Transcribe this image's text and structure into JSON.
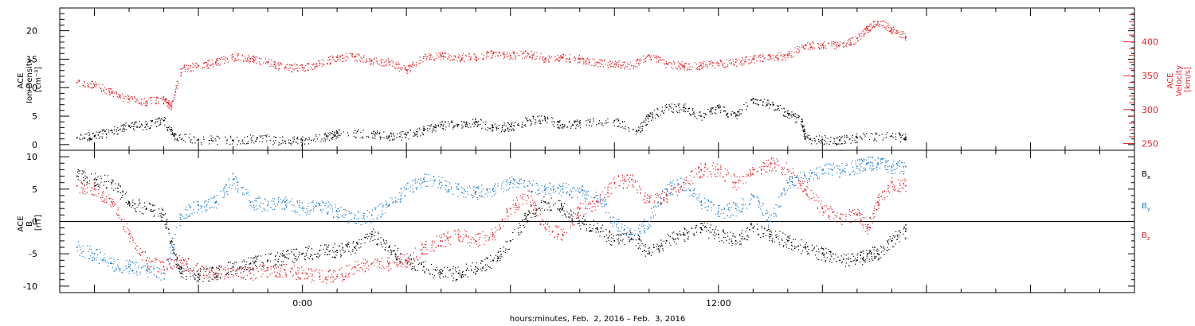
{
  "chart_data": [
    {
      "type": "scatter",
      "panel": "top",
      "ylabel_left": [
        "ACE",
        "Ion Density",
        "[cm⁻³]"
      ],
      "ylabel_right": [
        "ACE",
        "Velocity",
        "[km/s]"
      ],
      "ylim_left": [
        -1,
        24
      ],
      "ylim_right": [
        240,
        450
      ],
      "y_ticks_left": [
        0,
        5,
        10,
        15,
        20
      ],
      "y_ticks_right": [
        250,
        300,
        350,
        400
      ],
      "colors": {
        "density": "#000000",
        "velocity": "#e8232a"
      },
      "series": [
        {
          "name": "Ion Density",
          "axis": "left",
          "color": "#000000",
          "points": [
            [
              -6.5,
              1.2
            ],
            [
              -6,
              1.5
            ],
            [
              -5.5,
              2.5
            ],
            [
              -5,
              3.2
            ],
            [
              -4.5,
              3.5
            ],
            [
              -4,
              4.2
            ],
            [
              -3.7,
              1.5
            ],
            [
              -3,
              0.9
            ],
            [
              -2,
              0.8
            ],
            [
              -1.3,
              1.2
            ],
            [
              -0.5,
              0.6
            ],
            [
              0,
              0.7
            ],
            [
              0.7,
              1.5
            ],
            [
              1,
              2
            ],
            [
              2,
              2.0
            ],
            [
              2.5,
              1.5
            ],
            [
              3,
              1.7
            ],
            [
              3.5,
              2.5
            ],
            [
              4,
              3.5
            ],
            [
              4.5,
              3.5
            ],
            [
              5,
              4.0
            ],
            [
              5.5,
              3.0
            ],
            [
              6,
              3.2
            ],
            [
              6.5,
              4.2
            ],
            [
              7,
              4.5
            ],
            [
              7.5,
              3.5
            ],
            [
              8,
              3.8
            ],
            [
              9,
              4.2
            ],
            [
              9.7,
              2.5
            ],
            [
              10,
              5
            ],
            [
              10.5,
              6.5
            ],
            [
              11,
              6.5
            ],
            [
              11.5,
              5.0
            ],
            [
              12,
              6.5
            ],
            [
              12.5,
              5.0
            ],
            [
              13,
              8.0
            ],
            [
              13.5,
              7.0
            ],
            [
              14,
              5.5
            ],
            [
              14.4,
              4.0
            ],
            [
              14.5,
              1
            ],
            [
              15,
              0.9
            ],
            [
              15.5,
              0.8
            ],
            [
              16,
              1.2
            ],
            [
              17,
              1.5
            ],
            [
              17.4,
              1.3
            ]
          ]
        },
        {
          "name": "Velocity",
          "axis": "right",
          "color": "#e8232a",
          "points": [
            [
              -6.5,
              340
            ],
            [
              -6,
              337
            ],
            [
              -5.5,
              325
            ],
            [
              -5,
              315
            ],
            [
              -4.5,
              312
            ],
            [
              -4,
              315
            ],
            [
              -3.8,
              305
            ],
            [
              -3.5,
              360
            ],
            [
              -3,
              365
            ],
            [
              -2.5,
              370
            ],
            [
              -2,
              378
            ],
            [
              -1.5,
              375
            ],
            [
              -1,
              370
            ],
            [
              -0.5,
              362
            ],
            [
              0,
              362
            ],
            [
              0.5,
              368
            ],
            [
              1,
              377
            ],
            [
              1.5,
              378
            ],
            [
              2,
              372
            ],
            [
              2.5,
              370
            ],
            [
              3,
              358
            ],
            [
              3.5,
              378
            ],
            [
              4,
              380
            ],
            [
              4.5,
              377
            ],
            [
              5,
              378
            ],
            [
              5.5,
              383
            ],
            [
              6,
              380
            ],
            [
              6.5,
              383
            ],
            [
              7,
              375
            ],
            [
              7.5,
              377
            ],
            [
              8,
              375
            ],
            [
              8.5,
              370
            ],
            [
              9,
              367
            ],
            [
              9.5,
              365
            ],
            [
              10,
              380
            ],
            [
              10.5,
              368
            ],
            [
              11,
              365
            ],
            [
              11.5,
              365
            ],
            [
              12,
              368
            ],
            [
              12.5,
              370
            ],
            [
              13,
              375
            ],
            [
              13.5,
              378
            ],
            [
              14,
              380
            ],
            [
              14.5,
              395
            ],
            [
              15,
              395
            ],
            [
              15.5,
              395
            ],
            [
              16,
              405
            ],
            [
              16.3,
              420
            ],
            [
              16.6,
              430
            ],
            [
              17,
              418
            ],
            [
              17.4,
              408
            ]
          ]
        }
      ]
    },
    {
      "type": "scatter",
      "panel": "bottom",
      "ylabel": [
        "ACE",
        "B",
        "[nT]"
      ],
      "ylim": [
        -11,
        11
      ],
      "y_ticks": [
        -10,
        -5,
        0,
        5,
        10
      ],
      "zero_line": true,
      "colors": {
        "Bx": "#000000",
        "By": "#1f7fd3",
        "Bz": "#e8232a"
      },
      "legend": [
        {
          "base": "B",
          "sub": "x",
          "color": "#000000"
        },
        {
          "base": "B",
          "sub": "y",
          "color": "#1f7fd3"
        },
        {
          "base": "B",
          "sub": "z",
          "color": "#e8232a"
        }
      ],
      "series": [
        {
          "name": "Bx",
          "color": "#000000",
          "points": [
            [
              -6.5,
              7
            ],
            [
              -6,
              6.5
            ],
            [
              -5.5,
              6
            ],
            [
              -5,
              3
            ],
            [
              -4.5,
              2
            ],
            [
              -4,
              1
            ],
            [
              -3.7,
              -5
            ],
            [
              -3.5,
              -8
            ],
            [
              -3,
              -8.2
            ],
            [
              -2.5,
              -8
            ],
            [
              -2,
              -7
            ],
            [
              -1.5,
              -6.5
            ],
            [
              -1,
              -6
            ],
            [
              -0.5,
              -5.5
            ],
            [
              0,
              -5
            ],
            [
              0.5,
              -4.5
            ],
            [
              1,
              -4.5
            ],
            [
              1.5,
              -4
            ],
            [
              2,
              -2
            ],
            [
              2.5,
              -4
            ],
            [
              3,
              -6
            ],
            [
              3.5,
              -7
            ],
            [
              4,
              -8
            ],
            [
              4.5,
              -8
            ],
            [
              5,
              -7
            ],
            [
              5.5,
              -6
            ],
            [
              6,
              -3
            ],
            [
              6.5,
              1
            ],
            [
              7,
              3
            ],
            [
              7.5,
              2
            ],
            [
              8,
              0
            ],
            [
              8.5,
              -1
            ],
            [
              9,
              -3
            ],
            [
              9.5,
              -2
            ],
            [
              10,
              -5
            ],
            [
              10.5,
              -3
            ],
            [
              11,
              -2
            ],
            [
              11.5,
              -1
            ],
            [
              12,
              -2
            ],
            [
              12.5,
              -3
            ],
            [
              13,
              -1
            ],
            [
              13.5,
              -2
            ],
            [
              14,
              -3
            ],
            [
              14.5,
              -4
            ],
            [
              15,
              -5
            ],
            [
              15.5,
              -6
            ],
            [
              16,
              -6
            ],
            [
              16.3,
              -5
            ],
            [
              16.6,
              -5
            ],
            [
              17,
              -3
            ],
            [
              17.4,
              -1.5
            ]
          ]
        },
        {
          "name": "By",
          "color": "#1f7fd3",
          "points": [
            [
              -6.5,
              -4
            ],
            [
              -6,
              -5
            ],
            [
              -5.5,
              -6.5
            ],
            [
              -5,
              -7
            ],
            [
              -4.5,
              -7.5
            ],
            [
              -4,
              -8
            ],
            [
              -3.5,
              1
            ],
            [
              -3,
              2.5
            ],
            [
              -2.5,
              3
            ],
            [
              -2,
              6.5
            ],
            [
              -1.5,
              3
            ],
            [
              -1,
              2.5
            ],
            [
              -0.5,
              3
            ],
            [
              0,
              2
            ],
            [
              0.5,
              2.5
            ],
            [
              1,
              1.5
            ],
            [
              1.5,
              0.5
            ],
            [
              2,
              1
            ],
            [
              2.5,
              2.5
            ],
            [
              3,
              5
            ],
            [
              3.5,
              6.5
            ],
            [
              4,
              6
            ],
            [
              4.5,
              5
            ],
            [
              5,
              4.5
            ],
            [
              5.5,
              5
            ],
            [
              6,
              6
            ],
            [
              6.5,
              5.5
            ],
            [
              7,
              5
            ],
            [
              7.5,
              5
            ],
            [
              8,
              4.5
            ],
            [
              8.5,
              4
            ],
            [
              9,
              0
            ],
            [
              9.5,
              -2
            ],
            [
              10,
              0
            ],
            [
              10.5,
              5
            ],
            [
              11,
              6
            ],
            [
              11.5,
              3
            ],
            [
              12,
              1.5
            ],
            [
              12.5,
              2
            ],
            [
              13,
              4
            ],
            [
              13.5,
              0
            ],
            [
              14,
              6
            ],
            [
              14.5,
              7
            ],
            [
              15,
              8
            ],
            [
              15.5,
              8
            ],
            [
              16,
              8.5
            ],
            [
              16.3,
              9
            ],
            [
              16.6,
              9
            ],
            [
              17,
              8.5
            ],
            [
              17.4,
              8.5
            ]
          ]
        },
        {
          "name": "Bz",
          "color": "#e8232a",
          "points": [
            [
              -6.5,
              5.5
            ],
            [
              -6,
              5
            ],
            [
              -5.5,
              3
            ],
            [
              -5,
              -2
            ],
            [
              -4.5,
              -6
            ],
            [
              -4,
              -7
            ],
            [
              -3.5,
              -6
            ],
            [
              -3,
              -7.5
            ],
            [
              -2.5,
              -8
            ],
            [
              -2,
              -7.5
            ],
            [
              -1.5,
              -8
            ],
            [
              -1,
              -7.5
            ],
            [
              -0.5,
              -7.5
            ],
            [
              0,
              -8
            ],
            [
              0.5,
              -8.5
            ],
            [
              1,
              -8.5
            ],
            [
              1.5,
              -7
            ],
            [
              2,
              -6.5
            ],
            [
              2.5,
              -6.5
            ],
            [
              3,
              -6
            ],
            [
              3.5,
              -4
            ],
            [
              4,
              -3
            ],
            [
              4.5,
              -2
            ],
            [
              5,
              -3
            ],
            [
              5.5,
              -2
            ],
            [
              6,
              2
            ],
            [
              6.5,
              4
            ],
            [
              7,
              -1
            ],
            [
              7.5,
              -2
            ],
            [
              8,
              2
            ],
            [
              8.5,
              3
            ],
            [
              9,
              6
            ],
            [
              9.5,
              6.5
            ],
            [
              10,
              3
            ],
            [
              10.5,
              4
            ],
            [
              11,
              6
            ],
            [
              11.5,
              8
            ],
            [
              12,
              8
            ],
            [
              12.5,
              6
            ],
            [
              13,
              8
            ],
            [
              13.5,
              9
            ],
            [
              14,
              8
            ],
            [
              14.5,
              5
            ],
            [
              15,
              2
            ],
            [
              15.5,
              0.5
            ],
            [
              16,
              1
            ],
            [
              16.3,
              -1
            ],
            [
              16.6,
              3
            ],
            [
              17,
              6
            ],
            [
              17.4,
              5.5
            ]
          ]
        }
      ]
    }
  ],
  "x_axis": {
    "unit": "hours relative to 00:00, Feb. 3, 2016",
    "range": [
      -7,
      24
    ],
    "tick_labels": [
      "0:00",
      "12:00"
    ],
    "title": "hours:minutes, Feb.  2, 2016 – Feb.  3, 2016"
  }
}
